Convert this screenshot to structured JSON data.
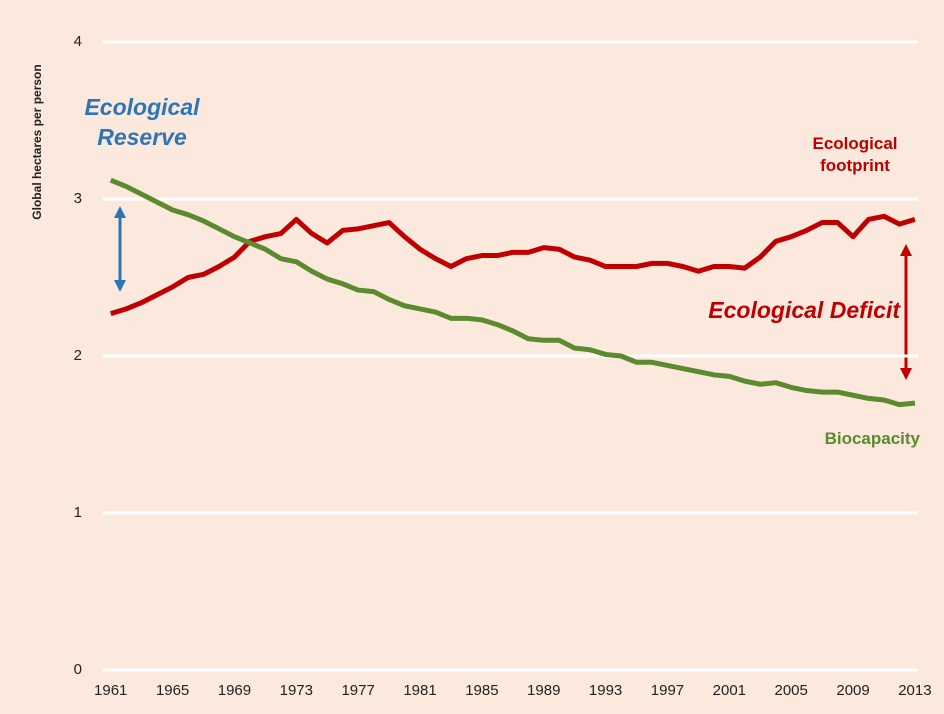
{
  "chart_data": {
    "type": "line",
    "y_label": "Global hectares per person",
    "x": [
      1961,
      1962,
      1963,
      1964,
      1965,
      1966,
      1967,
      1968,
      1969,
      1970,
      1971,
      1972,
      1973,
      1974,
      1975,
      1976,
      1977,
      1978,
      1979,
      1980,
      1981,
      1982,
      1983,
      1984,
      1985,
      1986,
      1987,
      1988,
      1989,
      1990,
      1991,
      1992,
      1993,
      1994,
      1995,
      1996,
      1997,
      1998,
      1999,
      2000,
      2001,
      2002,
      2003,
      2004,
      2005,
      2006,
      2007,
      2008,
      2009,
      2010,
      2011,
      2012,
      2013
    ],
    "series": [
      {
        "name": "Ecological footprint",
        "color": "#c00000",
        "values": [
          2.27,
          2.3,
          2.34,
          2.39,
          2.44,
          2.5,
          2.52,
          2.57,
          2.63,
          2.73,
          2.76,
          2.78,
          2.87,
          2.78,
          2.72,
          2.8,
          2.81,
          2.83,
          2.85,
          2.76,
          2.68,
          2.62,
          2.57,
          2.62,
          2.64,
          2.64,
          2.66,
          2.66,
          2.69,
          2.68,
          2.63,
          2.61,
          2.57,
          2.57,
          2.57,
          2.59,
          2.59,
          2.57,
          2.54,
          2.57,
          2.57,
          2.56,
          2.63,
          2.73,
          2.76,
          2.8,
          2.85,
          2.85,
          2.76,
          2.87,
          2.89,
          2.84,
          2.87
        ]
      },
      {
        "name": "Biocapacity",
        "color": "#5b8a2f",
        "values": [
          3.12,
          3.08,
          3.03,
          2.98,
          2.93,
          2.9,
          2.86,
          2.81,
          2.76,
          2.72,
          2.68,
          2.62,
          2.6,
          2.54,
          2.49,
          2.46,
          2.42,
          2.41,
          2.36,
          2.32,
          2.3,
          2.28,
          2.24,
          2.24,
          2.23,
          2.2,
          2.16,
          2.11,
          2.1,
          2.1,
          2.05,
          2.04,
          2.01,
          2.0,
          1.96,
          1.96,
          1.94,
          1.92,
          1.9,
          1.88,
          1.87,
          1.84,
          1.82,
          1.83,
          1.8,
          1.78,
          1.77,
          1.77,
          1.75,
          1.73,
          1.72,
          1.69,
          1.7
        ]
      }
    ],
    "annotations": [
      "Ecological Reserve",
      "Ecological Deficit"
    ],
    "xlim": [
      1960.5,
      2013.2
    ],
    "xticks": [
      1961,
      1965,
      1969,
      1973,
      1977,
      1981,
      1985,
      1989,
      1993,
      1997,
      2001,
      2005,
      2009,
      2013
    ],
    "ylim": [
      0,
      4
    ],
    "yticks": [
      0,
      1,
      2,
      3,
      4
    ],
    "grid": true
  }
}
